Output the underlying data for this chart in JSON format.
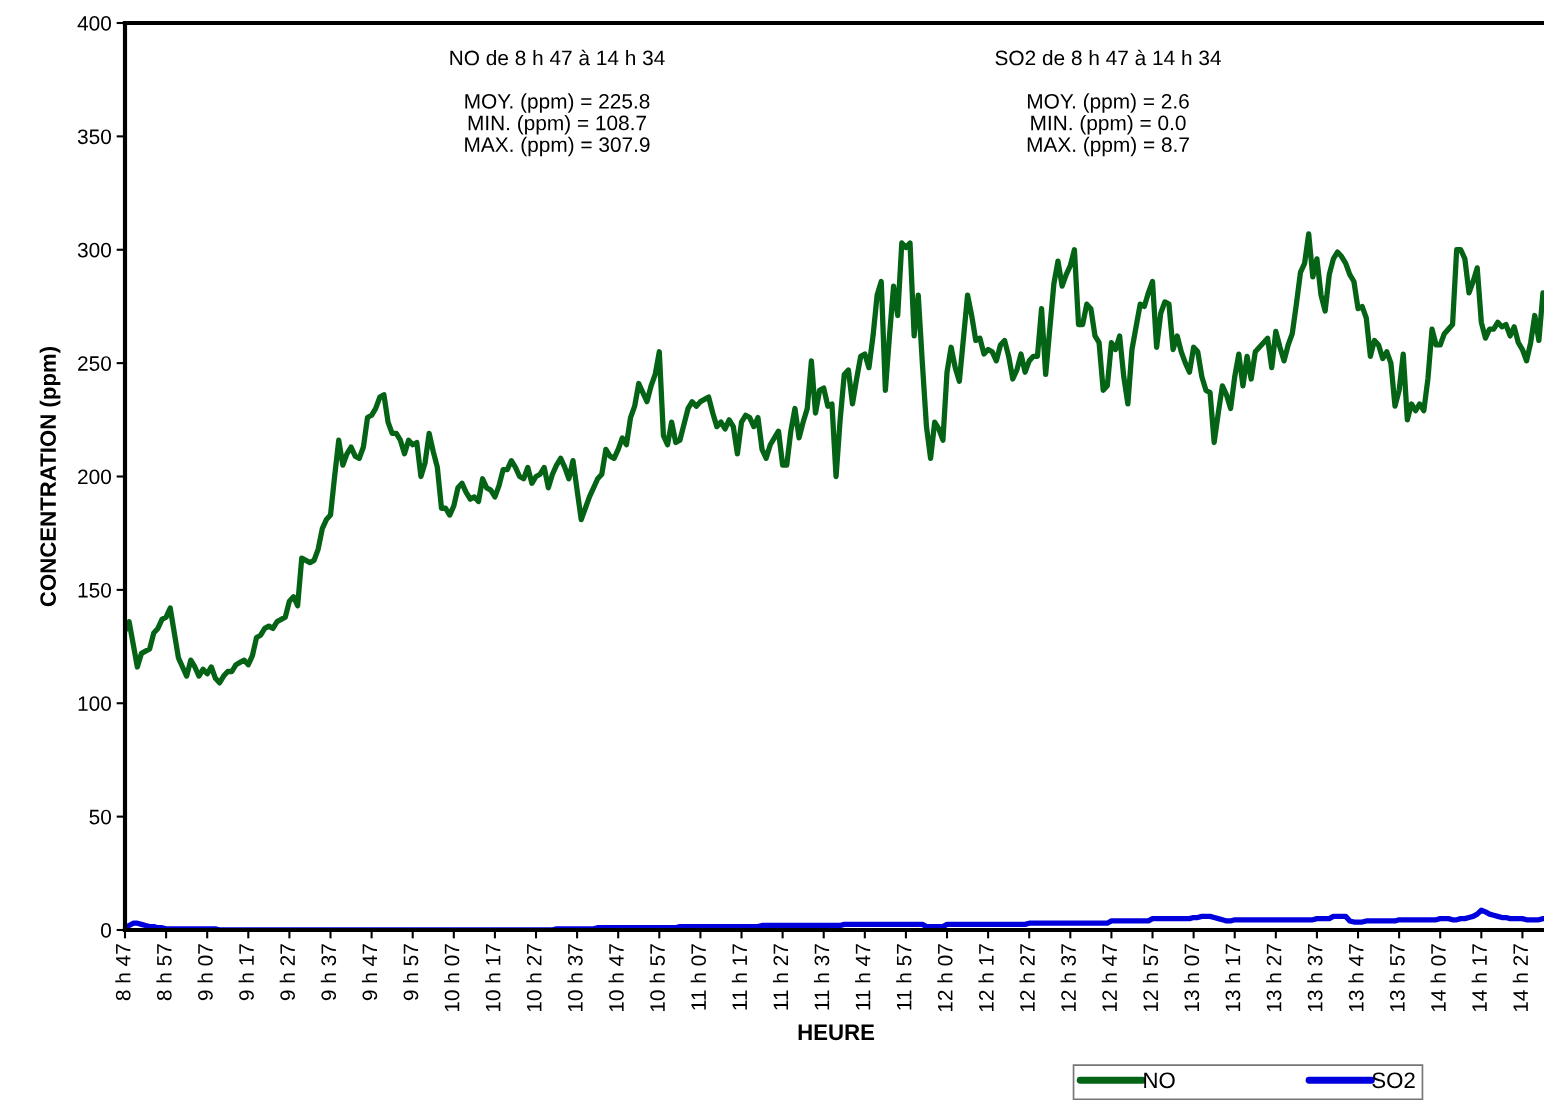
{
  "chart_data": {
    "type": "line",
    "xlabel": "HEURE",
    "ylabel": "CONCENTRATION (ppm)",
    "annotations": [
      "NO de 8 h 47 à 14 h 34\n\nMOY. (ppm) = 225.8\nMIN. (ppm) = 108.7\nMAX. (ppm) = 307.9",
      "SO2 de 8 h 47 à 14 h 34\n\nMOY. (ppm) = 2.6\nMIN. (ppm) = 0.0\nMAX. (ppm) = 8.7"
    ],
    "ylim": [
      0,
      400
    ],
    "yticks": [
      0,
      50,
      100,
      150,
      200,
      250,
      300,
      350,
      400
    ],
    "categories": [
      "8 h 47",
      null,
      null,
      null,
      null,
      null,
      null,
      null,
      null,
      null,
      "8 h 57",
      null,
      null,
      null,
      null,
      null,
      null,
      null,
      null,
      null,
      "9 h 07",
      null,
      null,
      null,
      null,
      null,
      null,
      null,
      null,
      null,
      "9 h 17",
      null,
      null,
      null,
      null,
      null,
      null,
      null,
      null,
      null,
      "9 h 27",
      null,
      null,
      null,
      null,
      null,
      null,
      null,
      null,
      null,
      "9 h 37",
      null,
      null,
      null,
      null,
      null,
      null,
      null,
      null,
      null,
      "9 h 47",
      null,
      null,
      null,
      null,
      null,
      null,
      null,
      null,
      null,
      "9 h 57",
      null,
      null,
      null,
      null,
      null,
      null,
      null,
      null,
      null,
      "10 h 07",
      null,
      null,
      null,
      null,
      null,
      null,
      null,
      null,
      null,
      "10 h 17",
      null,
      null,
      null,
      null,
      null,
      null,
      null,
      null,
      null,
      "10 h 27",
      null,
      null,
      null,
      null,
      null,
      null,
      null,
      null,
      null,
      "10 h 37",
      null,
      null,
      null,
      null,
      null,
      null,
      null,
      null,
      null,
      "10 h 47",
      null,
      null,
      null,
      null,
      null,
      null,
      null,
      null,
      null,
      "10 h 57",
      null,
      null,
      null,
      null,
      null,
      null,
      null,
      null,
      null,
      "11 h 07",
      null,
      null,
      null,
      null,
      null,
      null,
      null,
      null,
      null,
      "11 h 17",
      null,
      null,
      null,
      null,
      null,
      null,
      null,
      null,
      null,
      "11 h 27",
      null,
      null,
      null,
      null,
      null,
      null,
      null,
      null,
      null,
      "11 h 37",
      null,
      null,
      null,
      null,
      null,
      null,
      null,
      null,
      null,
      "11 h 47",
      null,
      null,
      null,
      null,
      null,
      null,
      null,
      null,
      null,
      "11 h 57",
      null,
      null,
      null,
      null,
      null,
      null,
      null,
      null,
      null,
      "12 h 07",
      null,
      null,
      null,
      null,
      null,
      null,
      null,
      null,
      null,
      "12 h 17",
      null,
      null,
      null,
      null,
      null,
      null,
      null,
      null,
      null,
      "12 h 27",
      null,
      null,
      null,
      null,
      null,
      null,
      null,
      null,
      null,
      "12 h 37",
      null,
      null,
      null,
      null,
      null,
      null,
      null,
      null,
      null,
      "12 h 47",
      null,
      null,
      null,
      null,
      null,
      null,
      null,
      null,
      null,
      "12 h 57",
      null,
      null,
      null,
      null,
      null,
      null,
      null,
      null,
      null,
      "13 h 07",
      null,
      null,
      null,
      null,
      null,
      null,
      null,
      null,
      null,
      "13 h 17",
      null,
      null,
      null,
      null,
      null,
      null,
      null,
      null,
      null,
      "13 h 27",
      null,
      null,
      null,
      null,
      null,
      null,
      null,
      null,
      null,
      "13 h 37",
      null,
      null,
      null,
      null,
      null,
      null,
      null,
      null,
      null,
      "13 h 47",
      null,
      null,
      null,
      null,
      null,
      null,
      null,
      null,
      null,
      "13 h 57",
      null,
      null,
      null,
      null,
      null,
      null,
      null,
      null,
      null,
      "14 h 07",
      null,
      null,
      null,
      null,
      null,
      null,
      null,
      null,
      null,
      "14 h 17",
      null,
      null,
      null,
      null,
      null,
      null,
      null,
      null,
      null,
      "14 h 27",
      null,
      null,
      null,
      null,
      null,
      null
    ],
    "grid": false,
    "legend": "bottom",
    "marker": "none",
    "line_style": "solid",
    "series": [
      {
        "name": "NO",
        "color": "#056316",
        "values": [
          132,
          136,
          126,
          116,
          122,
          123,
          124,
          131,
          133,
          137,
          138,
          142,
          131,
          120,
          116,
          112,
          119,
          116,
          112,
          115,
          113,
          116,
          111,
          109,
          112,
          114,
          114,
          117,
          118,
          119,
          117,
          121,
          129,
          130,
          133,
          134,
          133,
          136,
          137,
          138,
          145,
          147,
          143,
          164,
          163,
          162,
          163,
          168,
          177,
          181,
          183,
          200,
          216,
          205,
          210,
          213,
          209,
          208,
          213,
          226,
          227,
          230,
          235,
          236,
          224,
          219,
          219,
          216,
          210,
          216,
          214,
          215,
          200,
          206,
          219,
          211,
          204,
          186,
          186,
          183,
          187,
          195,
          197,
          193,
          190,
          191,
          189,
          199,
          195,
          194,
          191,
          196,
          203,
          203,
          207,
          204,
          200,
          199,
          204,
          197,
          200,
          201,
          204,
          195,
          201,
          205,
          208,
          204,
          199,
          207,
          194,
          181,
          186,
          191,
          195,
          199,
          201,
          212,
          209,
          208,
          212,
          217,
          214,
          226,
          231,
          241,
          237,
          233,
          240,
          245,
          255,
          218,
          214,
          224,
          215,
          216,
          223,
          230,
          233,
          231,
          233,
          234,
          235,
          228,
          222,
          224,
          221,
          225,
          222,
          210,
          224,
          227,
          226,
          222,
          226,
          212,
          208,
          214,
          217,
          220,
          205,
          205,
          220,
          230,
          217,
          224,
          230,
          251,
          228,
          238,
          239,
          231,
          232,
          200,
          225,
          245,
          247,
          232,
          243,
          253,
          254,
          248,
          262,
          280,
          286,
          238,
          262,
          284,
          271,
          303,
          301,
          303,
          262,
          280,
          250,
          222,
          208,
          224,
          221,
          216,
          246,
          257,
          248,
          242,
          261,
          280,
          271,
          260,
          261,
          254,
          256,
          255,
          251,
          258,
          260,
          253,
          243,
          247,
          254,
          246,
          251,
          253,
          253,
          274,
          245,
          265,
          285,
          295,
          284,
          289,
          293,
          300,
          267,
          267,
          276,
          274,
          262,
          259,
          238,
          240,
          259,
          256,
          262,
          244,
          232,
          256,
          266,
          276,
          275,
          281,
          286,
          257,
          272,
          277,
          276,
          256,
          262,
          255,
          250,
          246,
          257,
          255,
          244,
          238,
          237,
          215,
          228,
          240,
          236,
          230,
          244,
          254,
          240,
          253,
          243,
          255,
          257,
          259,
          261,
          248,
          264,
          257,
          251,
          258,
          263,
          276,
          290,
          294,
          307,
          288,
          296,
          280,
          273,
          289,
          296,
          299,
          297,
          294,
          289,
          286,
          274,
          275,
          270,
          253,
          260,
          258,
          252,
          255,
          250,
          231,
          238,
          254,
          225,
          232,
          229,
          232,
          229,
          243,
          265,
          258,
          258,
          263,
          265,
          267,
          300,
          300,
          296,
          281,
          286,
          292,
          268,
          261,
          265,
          265,
          268,
          266,
          267,
          262,
          266,
          259,
          256,
          251,
          259,
          271,
          260,
          281,
          278
        ]
      },
      {
        "name": "SO2",
        "color": "#0000dd",
        "values": [
          1,
          2,
          3,
          3,
          2.5,
          2,
          1.5,
          1.5,
          1,
          1,
          0.5,
          0.5,
          0.5,
          0.5,
          0.5,
          0.5,
          0.5,
          0.5,
          0.5,
          0.5,
          0.5,
          0.5,
          0.5,
          0,
          0,
          0,
          0,
          0,
          0,
          0,
          0,
          0,
          0,
          0,
          0,
          0,
          0,
          0,
          0,
          0,
          0,
          0,
          0,
          0,
          0,
          0,
          0,
          0,
          0,
          0,
          0,
          0,
          0,
          0,
          0,
          0,
          0,
          0,
          0,
          0,
          0,
          0,
          0,
          0,
          0,
          0,
          0,
          0,
          0,
          0,
          0,
          0,
          0,
          0,
          0,
          0,
          0,
          0,
          0,
          0,
          0,
          0,
          0,
          0,
          0,
          0,
          0,
          0,
          0,
          0,
          0,
          0,
          0,
          0,
          0,
          0,
          0,
          0,
          0,
          0,
          0,
          0,
          0,
          0,
          0,
          0.5,
          0.5,
          0.5,
          0.5,
          0.5,
          0.5,
          0.5,
          0.5,
          0.5,
          0.5,
          1,
          1,
          1,
          1,
          1,
          1,
          1,
          1,
          1,
          1,
          1,
          1,
          1,
          1,
          1,
          1,
          1,
          1,
          1,
          1,
          1.5,
          1.5,
          1.5,
          1.5,
          1.5,
          1.5,
          1.5,
          1.5,
          1.5,
          1.5,
          1.5,
          1.5,
          1.5,
          1.5,
          1.5,
          1.5,
          1.5,
          1.5,
          1.5,
          1.5,
          2,
          2,
          2,
          2,
          2,
          2,
          2,
          2,
          2,
          2,
          2,
          2,
          2,
          2,
          2,
          2,
          2,
          2,
          2,
          2,
          2.5,
          2.5,
          2.5,
          2.5,
          2.5,
          2.5,
          2.5,
          2.5,
          2.5,
          2.5,
          2.5,
          2.5,
          2.5,
          2.5,
          2.5,
          2.5,
          2.5,
          2.5,
          2.5,
          2.5,
          1.5,
          1.5,
          1.5,
          1.5,
          1.5,
          2.5,
          2.5,
          2.5,
          2.5,
          2.5,
          2.5,
          2.5,
          2.5,
          2.5,
          2.5,
          2.5,
          2.5,
          2.5,
          2.5,
          2.5,
          2.5,
          2.5,
          2.5,
          2.5,
          2.5,
          3,
          3,
          3,
          3,
          3,
          3,
          3,
          3,
          3,
          3,
          3,
          3,
          3,
          3,
          3,
          3,
          3,
          3,
          3,
          3,
          4,
          4,
          4,
          4,
          4,
          4,
          4,
          4,
          4,
          4,
          5,
          5,
          5,
          5,
          5,
          5,
          5,
          5,
          5,
          5,
          5.5,
          5.5,
          6,
          6,
          6,
          5.5,
          5,
          4.5,
          4,
          4,
          4.5,
          4.5,
          4.5,
          4.5,
          4.5,
          4.5,
          4.5,
          4.5,
          4.5,
          4.5,
          4.5,
          4.5,
          4.5,
          4.5,
          4.5,
          4.5,
          4.5,
          4.5,
          4.5,
          4.5,
          5,
          5,
          5,
          5,
          6,
          6,
          6,
          6,
          4,
          3.5,
          3.5,
          3.5,
          4,
          4,
          4,
          4,
          4,
          4,
          4,
          4,
          4.5,
          4.5,
          4.5,
          4.5,
          4.5,
          4.5,
          4.5,
          4.5,
          4.5,
          4.5,
          5,
          5,
          5,
          4.5,
          4.5,
          5,
          5,
          5.5,
          6,
          7,
          8.7,
          8,
          7,
          6.5,
          6,
          5.5,
          5.5,
          5,
          5,
          5,
          5,
          4.5,
          4.5,
          4.5,
          4.5,
          5,
          5
        ]
      }
    ]
  }
}
